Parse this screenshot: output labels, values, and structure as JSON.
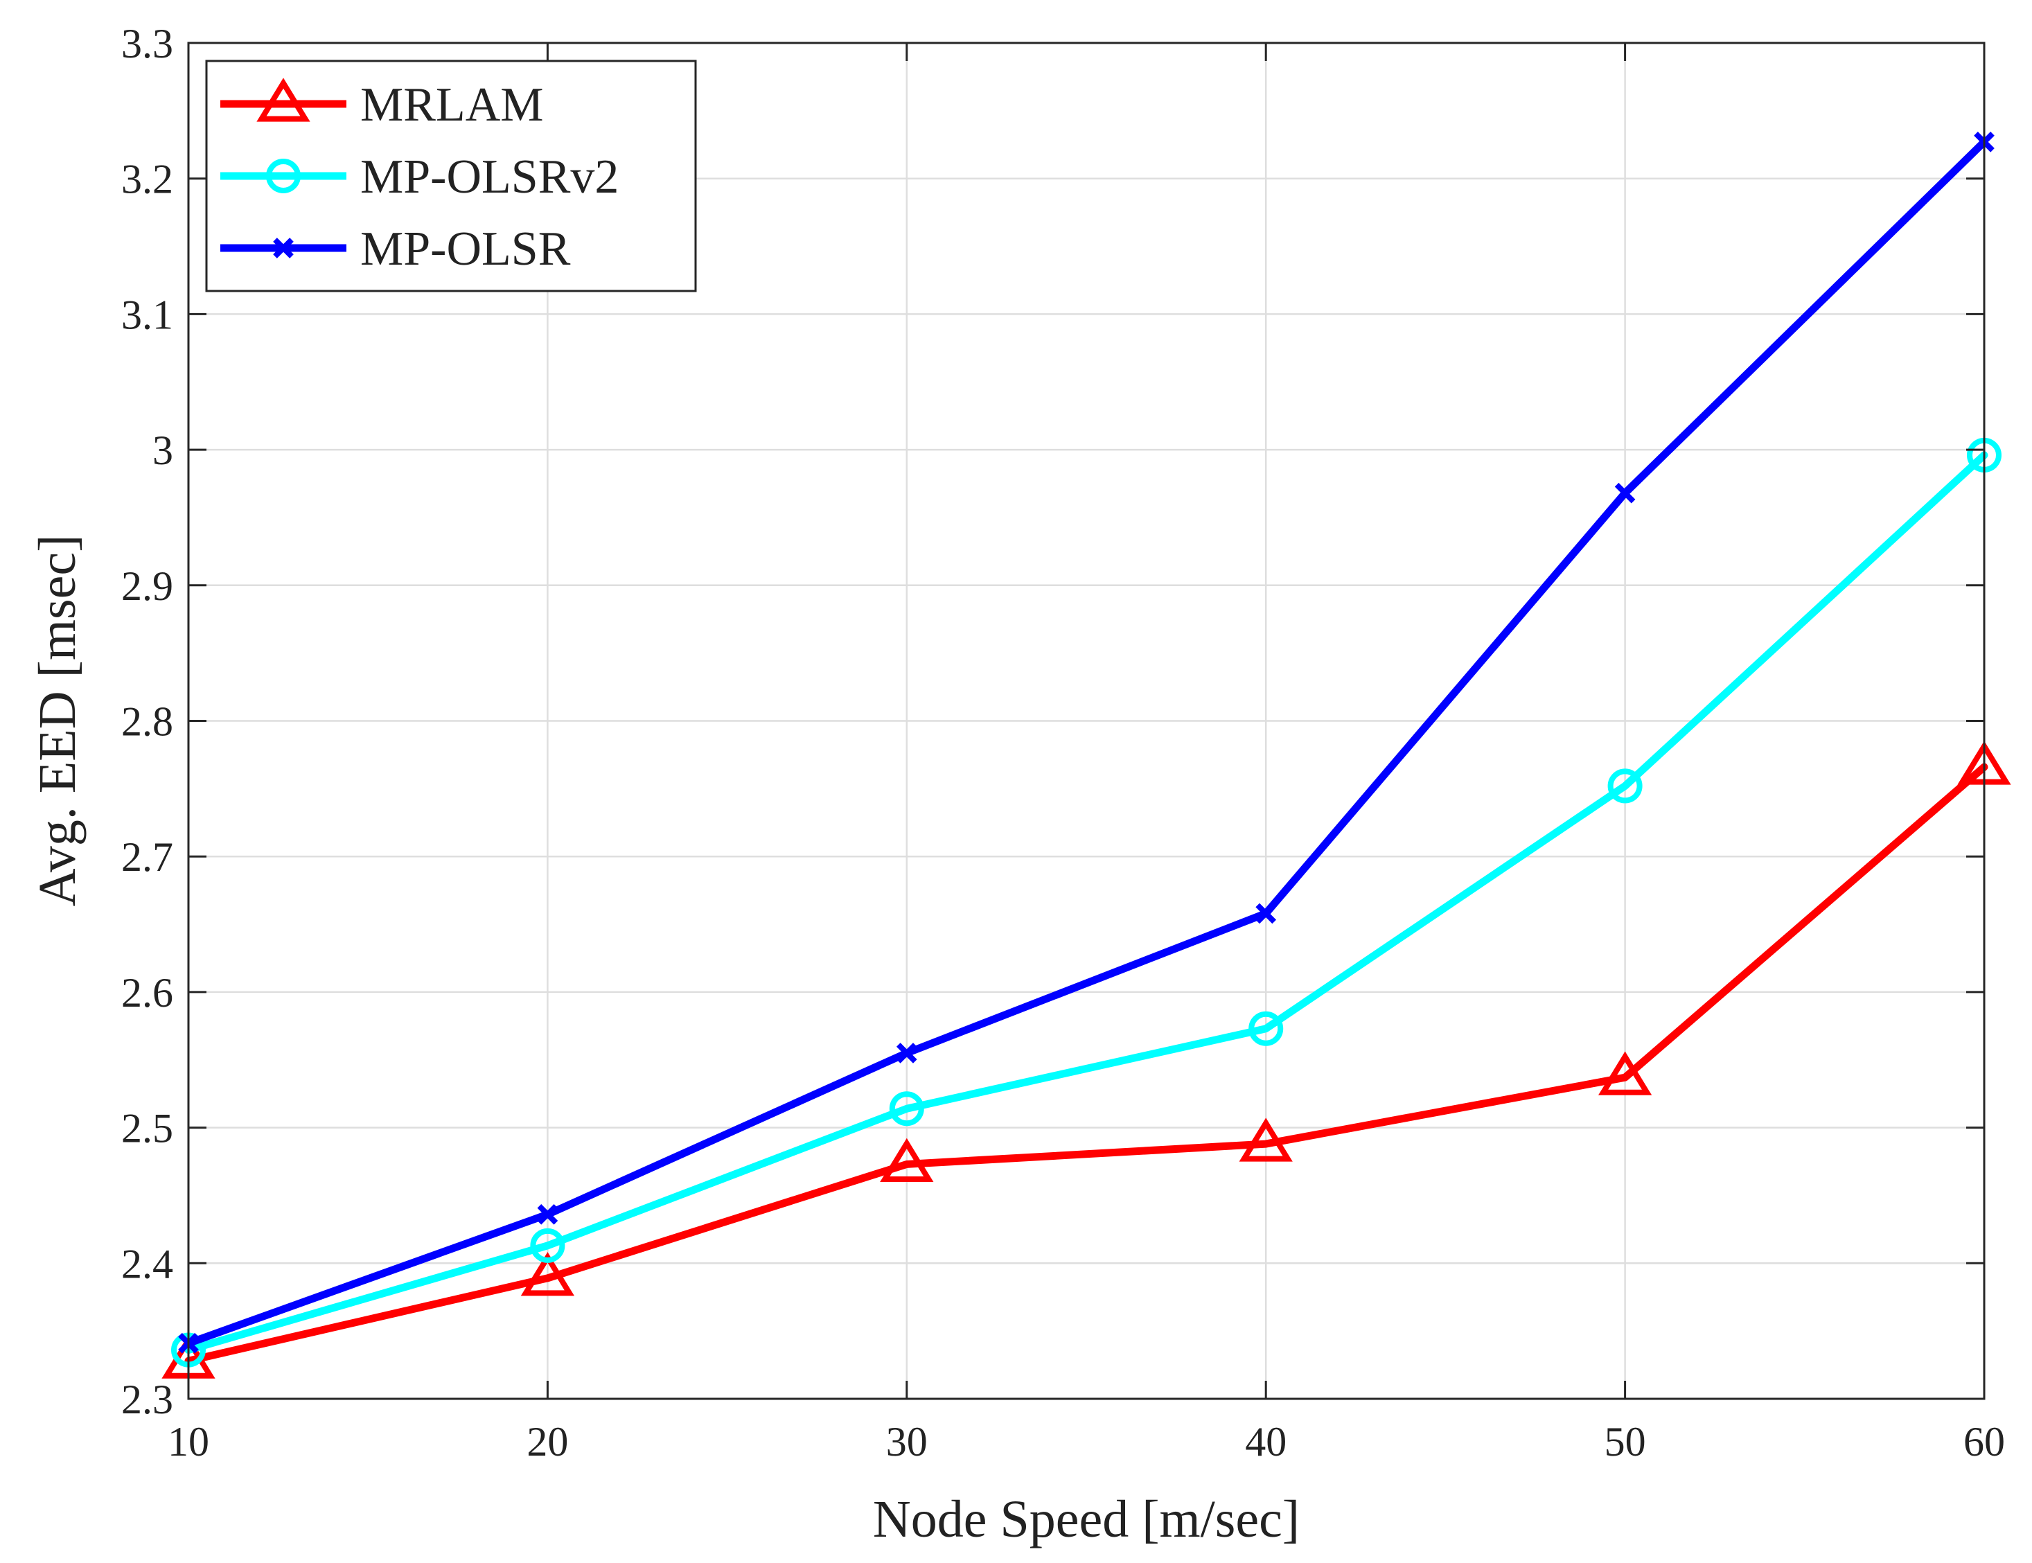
{
  "chart_data": {
    "type": "line",
    "title": "",
    "xlabel": "Node Speed [m/sec]",
    "ylabel": "Avg. EED [msec]",
    "x": [
      10,
      20,
      30,
      40,
      50,
      60
    ],
    "xlim": [
      10,
      60
    ],
    "ylim": [
      2.3,
      3.3
    ],
    "xticks": [
      "10",
      "20",
      "30",
      "40",
      "50",
      "60"
    ],
    "yticks": [
      "2.3",
      "2.4",
      "2.5",
      "2.6",
      "2.7",
      "2.8",
      "2.9",
      "3",
      "3.1",
      "3.2",
      "3.3"
    ],
    "grid": true,
    "legend_position": "top-left",
    "series": [
      {
        "name": "MRLAM",
        "color": "#ff0000",
        "marker": "triangle",
        "values": [
          2.328,
          2.389,
          2.473,
          2.488,
          2.537,
          2.766
        ]
      },
      {
        "name": "MP-OLSRv2",
        "color": "#00ffff",
        "marker": "circle",
        "values": [
          2.336,
          2.413,
          2.514,
          2.573,
          2.752,
          2.996
        ]
      },
      {
        "name": "MP-OLSR",
        "color": "#0000ff",
        "marker": "x",
        "values": [
          2.341,
          2.436,
          2.555,
          2.658,
          2.968,
          3.227
        ]
      }
    ]
  }
}
